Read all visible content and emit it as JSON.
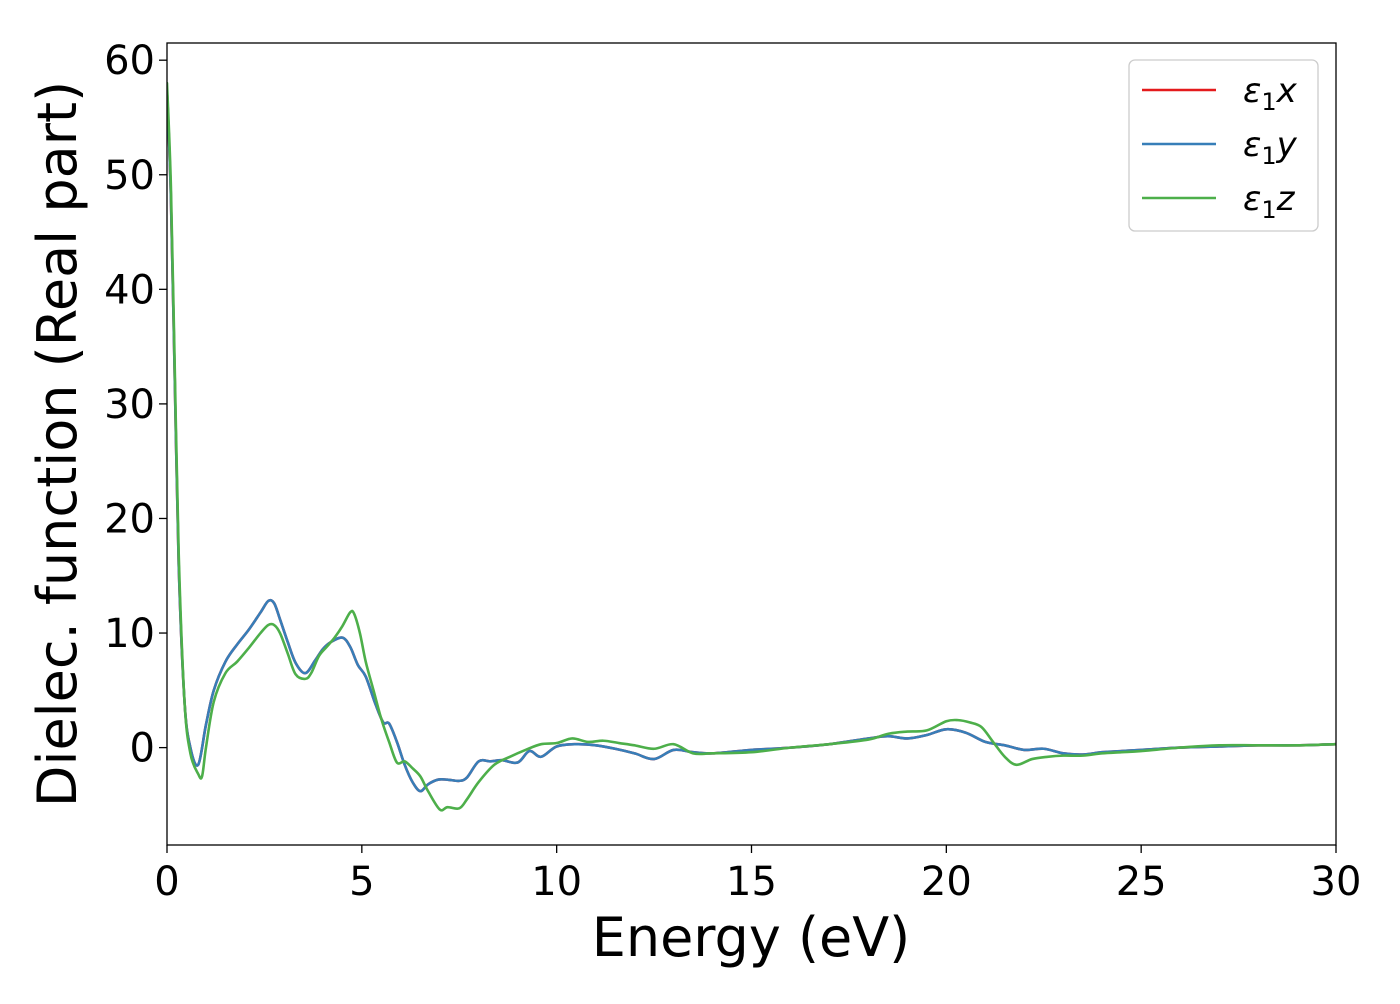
{
  "chart_data": {
    "type": "line",
    "title": "",
    "xlabel": "Energy (eV)",
    "ylabel": "Dielec. function (Real part)",
    "xlim": [
      0,
      30
    ],
    "ylim": [
      -8.5,
      61.5
    ],
    "xticks": [
      0,
      5,
      10,
      15,
      20,
      25,
      30
    ],
    "yticks": [
      0,
      10,
      20,
      30,
      40,
      50,
      60
    ],
    "grid": false,
    "legend_position": "upper-right",
    "series": [
      {
        "name": "ε₁x",
        "legend_base": "ε",
        "legend_sub": "1",
        "legend_var": "x",
        "color": "#e41a1c",
        "x": [
          0,
          0.1,
          0.2,
          0.3,
          0.45,
          0.6,
          0.8,
          1.0,
          1.2,
          1.5,
          1.8,
          2.1,
          2.4,
          2.6,
          2.75,
          2.9,
          3.1,
          3.3,
          3.55,
          3.8,
          4.0,
          4.2,
          4.5,
          4.7,
          4.9,
          5.1,
          5.35,
          5.55,
          5.7,
          5.9,
          6.1,
          6.3,
          6.5,
          6.7,
          6.95,
          7.2,
          7.5,
          7.7,
          8.0,
          8.3,
          8.6,
          9.0,
          9.3,
          9.6,
          10.0,
          10.5,
          11.0,
          11.5,
          12.0,
          12.5,
          13.0,
          13.5,
          14.0,
          15.0,
          16.0,
          17.0,
          18.0,
          18.5,
          19.0,
          19.5,
          20.0,
          20.5,
          21.0,
          21.5,
          22.0,
          22.5,
          23.0,
          23.5,
          24.0,
          24.5,
          25.0,
          26.0,
          27.0,
          28.0,
          29.0,
          30.0
        ],
        "values": [
          57.5,
          48,
          32,
          16,
          4,
          0,
          -1.5,
          2,
          5,
          7.5,
          9,
          10.3,
          11.8,
          12.8,
          12.6,
          11.2,
          9.2,
          7.4,
          6.5,
          7.6,
          8.6,
          9.2,
          9.6,
          8.8,
          7.2,
          6.2,
          3.8,
          2.2,
          2.1,
          0.5,
          -1.5,
          -3,
          -3.8,
          -3.2,
          -2.8,
          -2.8,
          -2.9,
          -2.6,
          -1.2,
          -1.2,
          -1.1,
          -1.3,
          -0.3,
          -0.8,
          0.1,
          0.3,
          0.2,
          -0.1,
          -0.5,
          -1,
          -0.2,
          -0.4,
          -0.5,
          -0.2,
          0,
          0.3,
          0.8,
          1,
          0.8,
          1.1,
          1.6,
          1.3,
          0.5,
          0.2,
          -0.2,
          -0.1,
          -0.5,
          -0.6,
          -0.4,
          -0.3,
          -0.2,
          0,
          0.1,
          0.2,
          0.2,
          0.3
        ]
      },
      {
        "name": "ε₁y",
        "legend_base": "ε",
        "legend_sub": "1",
        "legend_var": "y",
        "color": "#377eb8",
        "x": [
          0,
          0.1,
          0.2,
          0.3,
          0.45,
          0.6,
          0.8,
          1.0,
          1.2,
          1.5,
          1.8,
          2.1,
          2.4,
          2.6,
          2.75,
          2.9,
          3.1,
          3.3,
          3.55,
          3.8,
          4.0,
          4.2,
          4.5,
          4.7,
          4.9,
          5.1,
          5.35,
          5.55,
          5.7,
          5.9,
          6.1,
          6.3,
          6.5,
          6.7,
          6.95,
          7.2,
          7.5,
          7.7,
          8.0,
          8.3,
          8.6,
          9.0,
          9.3,
          9.6,
          10.0,
          10.5,
          11.0,
          11.5,
          12.0,
          12.5,
          13.0,
          13.5,
          14.0,
          15.0,
          16.0,
          17.0,
          18.0,
          18.5,
          19.0,
          19.5,
          20.0,
          20.5,
          21.0,
          21.5,
          22.0,
          22.5,
          23.0,
          23.5,
          24.0,
          24.5,
          25.0,
          26.0,
          27.0,
          28.0,
          29.0,
          30.0
        ],
        "values": [
          57.5,
          48,
          32,
          16,
          4,
          0,
          -1.5,
          2,
          5,
          7.5,
          9,
          10.3,
          11.8,
          12.8,
          12.6,
          11.2,
          9.2,
          7.4,
          6.5,
          7.6,
          8.6,
          9.2,
          9.6,
          8.8,
          7.2,
          6.2,
          3.8,
          2.2,
          2.1,
          0.5,
          -1.5,
          -3,
          -3.8,
          -3.2,
          -2.8,
          -2.8,
          -2.9,
          -2.6,
          -1.2,
          -1.2,
          -1.1,
          -1.3,
          -0.3,
          -0.8,
          0.1,
          0.3,
          0.2,
          -0.1,
          -0.5,
          -1,
          -0.2,
          -0.4,
          -0.5,
          -0.2,
          0,
          0.3,
          0.8,
          1,
          0.8,
          1.1,
          1.6,
          1.3,
          0.5,
          0.2,
          -0.2,
          -0.1,
          -0.5,
          -0.6,
          -0.4,
          -0.3,
          -0.2,
          0,
          0.1,
          0.2,
          0.2,
          0.3
        ]
      },
      {
        "name": "ε₁z",
        "legend_base": "ε",
        "legend_sub": "1",
        "legend_var": "z",
        "color": "#4daf4a",
        "x": [
          0,
          0.1,
          0.2,
          0.3,
          0.45,
          0.6,
          0.8,
          0.9,
          1.0,
          1.2,
          1.5,
          1.8,
          2.1,
          2.4,
          2.6,
          2.75,
          2.9,
          3.1,
          3.3,
          3.55,
          3.7,
          3.9,
          4.1,
          4.3,
          4.5,
          4.7,
          4.8,
          4.95,
          5.1,
          5.3,
          5.5,
          5.7,
          5.9,
          6.1,
          6.3,
          6.5,
          6.7,
          7.0,
          7.2,
          7.5,
          7.7,
          8.0,
          8.4,
          8.8,
          9.2,
          9.6,
          10.0,
          10.4,
          10.8,
          11.2,
          11.6,
          12.0,
          12.5,
          13.0,
          13.5,
          14.0,
          15.0,
          16.0,
          17.0,
          18.0,
          18.5,
          19.0,
          19.5,
          20.0,
          20.3,
          20.6,
          20.9,
          21.2,
          21.5,
          21.8,
          22.2,
          22.6,
          23.0,
          23.5,
          24.0,
          24.5,
          25.0,
          26.0,
          27.0,
          28.0,
          29.0,
          30.0
        ],
        "values": [
          58,
          49,
          33,
          17,
          4,
          -0.5,
          -2.3,
          -2.5,
          0,
          4,
          6.5,
          7.5,
          8.7,
          10,
          10.7,
          10.7,
          10,
          8.2,
          6.4,
          6,
          6.5,
          8,
          8.8,
          9.6,
          10.6,
          11.8,
          11.7,
          10,
          7.5,
          5,
          2.5,
          0.5,
          -1.3,
          -1.2,
          -1.8,
          -2.5,
          -3.8,
          -5.4,
          -5.2,
          -5.3,
          -4.5,
          -3,
          -1.5,
          -0.8,
          -0.2,
          0.3,
          0.4,
          0.8,
          0.5,
          0.6,
          0.4,
          0.2,
          -0.1,
          0.3,
          -0.5,
          -0.5,
          -0.4,
          0,
          0.3,
          0.7,
          1.2,
          1.4,
          1.5,
          2.3,
          2.4,
          2.2,
          1.8,
          0.5,
          -0.8,
          -1.5,
          -1,
          -0.8,
          -0.7,
          -0.7,
          -0.5,
          -0.4,
          -0.3,
          0,
          0.2,
          0.2,
          0.2,
          0.3
        ]
      }
    ]
  }
}
